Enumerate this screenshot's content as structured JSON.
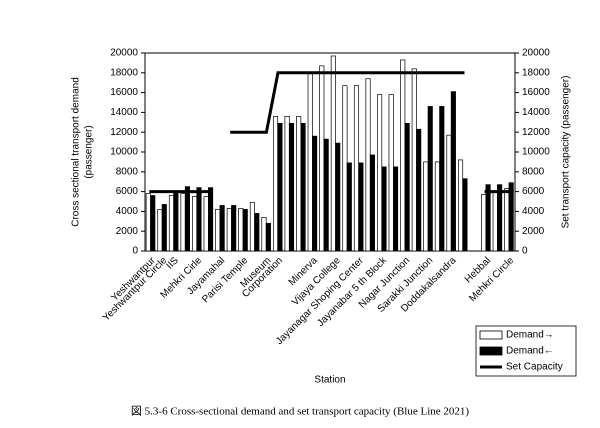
{
  "chart_data": {
    "type": "bar",
    "caption": "図 5.3-6 Cross-sectional demand and set transport capacity (Blue Line 2021)",
    "x_label": "Station",
    "y_label": "Cross sectional transport demand\n(passenger)",
    "y2_label": "Set transport capacity (passenger)",
    "categories": [
      "Yeshwantpur",
      "Yeshwantpur Circle",
      "IIS",
      null,
      "Mehkri Cirle",
      null,
      "Jayamahal",
      null,
      "Parisi Temple",
      null,
      "Museum",
      "Corporation",
      null,
      null,
      "Minerva",
      null,
      "Vijaya College",
      null,
      "Jayanagar Shoping Center",
      null,
      "Jayanabar 5 th Block",
      null,
      "Nagar Junction",
      null,
      "Sarakki Junction",
      null,
      "Doddakalsandra",
      null,
      null,
      "Hebbal",
      null,
      "Mehkri Circle"
    ],
    "series": [
      {
        "name": "Demand→",
        "color": "#ffffff",
        "values": [
          5800,
          4200,
          5600,
          5800,
          5500,
          5500,
          4200,
          4300,
          4300,
          4900,
          3400,
          13600,
          13600,
          13600,
          17900,
          18700,
          19700,
          16700,
          16700,
          17400,
          15800,
          15800,
          19300,
          18400,
          9000,
          9000,
          11700,
          9200,
          null,
          5700,
          6000,
          6300
        ]
      },
      {
        "name": "Demand←",
        "color": "#000000",
        "values": [
          5600,
          4700,
          6000,
          6500,
          6400,
          6400,
          4600,
          4600,
          4200,
          3800,
          2800,
          12900,
          12900,
          12900,
          11600,
          11300,
          10900,
          8900,
          8900,
          9700,
          8500,
          8500,
          12900,
          12300,
          14600,
          14600,
          16100,
          7300,
          null,
          6700,
          6700,
          6900
        ]
      },
      {
        "name": "Set Capacity",
        "type": "line",
        "color": "#000000",
        "axis": "y2",
        "values": [
          6000,
          6000,
          6000,
          6000,
          6000,
          6000,
          null,
          12000,
          12000,
          12000,
          12000,
          18000,
          18000,
          18000,
          18000,
          18000,
          18000,
          18000,
          18000,
          18000,
          18000,
          18000,
          18000,
          18000,
          18000,
          18000,
          18000,
          18000,
          null,
          6000,
          6000,
          6000
        ]
      }
    ],
    "ylim": [
      0,
      20000
    ],
    "yticks": [
      0,
      2000,
      4000,
      6000,
      8000,
      10000,
      12000,
      14000,
      16000,
      18000,
      20000
    ],
    "y2lim": [
      0,
      20000
    ],
    "y2ticks": [
      0,
      2000,
      4000,
      6000,
      8000,
      10000,
      12000,
      14000,
      16000,
      18000,
      20000
    ],
    "legend": "lower right"
  }
}
